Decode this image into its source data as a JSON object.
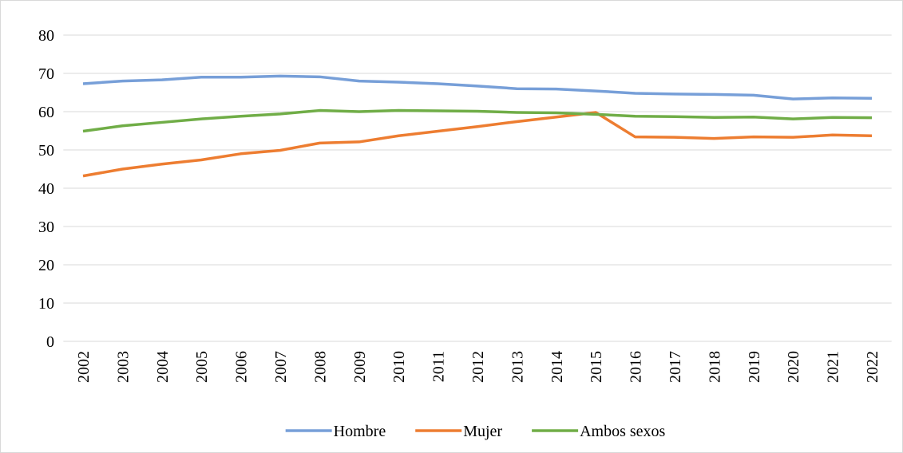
{
  "chart_data": {
    "type": "line",
    "categories": [
      "2002",
      "2003",
      "2004",
      "2005",
      "2006",
      "2007",
      "2008",
      "2009",
      "2010",
      "2011",
      "2012",
      "2013",
      "2014",
      "2015",
      "2016",
      "2017",
      "2018",
      "2019",
      "2020",
      "2021",
      "2022"
    ],
    "series": [
      {
        "name": "Hombre",
        "color": "#779fd8",
        "values": [
          67.3,
          68.0,
          68.3,
          69.0,
          69.0,
          69.3,
          69.1,
          68.0,
          67.7,
          67.3,
          66.7,
          66.0,
          65.9,
          65.4,
          64.8,
          64.6,
          64.5,
          64.3,
          63.3,
          63.6,
          63.5
        ]
      },
      {
        "name": "Mujer",
        "color": "#ed7d31",
        "values": [
          43.2,
          45.0,
          46.3,
          47.4,
          49.0,
          49.9,
          51.8,
          52.1,
          53.7,
          54.9,
          56.1,
          57.4,
          58.6,
          59.8,
          53.4,
          53.3,
          53.0,
          53.4,
          53.3,
          53.9,
          53.7
        ]
      },
      {
        "name": "Ambos sexos",
        "color": "#70ad47",
        "values": [
          54.9,
          56.3,
          57.2,
          58.1,
          58.8,
          59.4,
          60.3,
          60.0,
          60.3,
          60.2,
          60.1,
          59.8,
          59.7,
          59.3,
          58.8,
          58.7,
          58.5,
          58.6,
          58.1,
          58.5,
          58.4
        ]
      }
    ],
    "ylim": [
      0,
      80
    ],
    "yticks": [
      0,
      10,
      20,
      30,
      40,
      50,
      60,
      70,
      80
    ],
    "grid": true,
    "legend": "bottom"
  }
}
